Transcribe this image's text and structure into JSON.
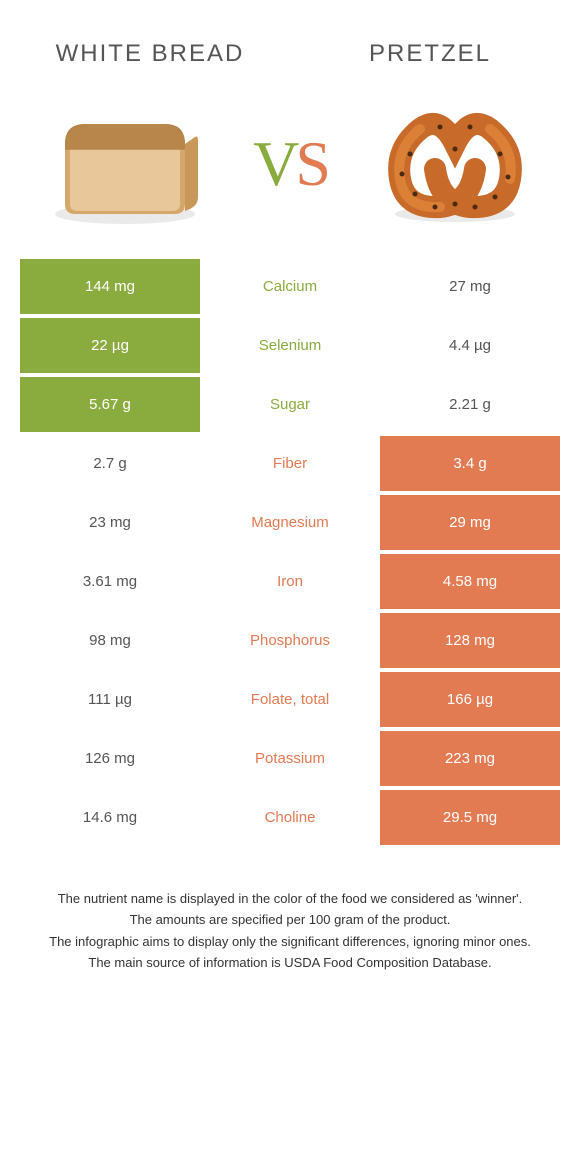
{
  "header": {
    "left_title": "White Bread",
    "right_title": "Pretzel",
    "vs_v": "V",
    "vs_s": "S"
  },
  "colors": {
    "green": "#8aab3e",
    "orange": "#e27a52",
    "bread_light": "#e8c89a",
    "bread_mid": "#d4a86a",
    "bread_dark": "#b8864a",
    "pretzel_main": "#c86a2a",
    "pretzel_light": "#e89040",
    "pretzel_dark": "#4a2a10"
  },
  "rows": [
    {
      "label": "Calcium",
      "left": "144 mg",
      "right": "27 mg",
      "winner": "left"
    },
    {
      "label": "Selenium",
      "left": "22 µg",
      "right": "4.4 µg",
      "winner": "left"
    },
    {
      "label": "Sugar",
      "left": "5.67 g",
      "right": "2.21 g",
      "winner": "left"
    },
    {
      "label": "Fiber",
      "left": "2.7 g",
      "right": "3.4 g",
      "winner": "right"
    },
    {
      "label": "Magnesium",
      "left": "23 mg",
      "right": "29 mg",
      "winner": "right"
    },
    {
      "label": "Iron",
      "left": "3.61 mg",
      "right": "4.58 mg",
      "winner": "right"
    },
    {
      "label": "Phosphorus",
      "left": "98 mg",
      "right": "128 mg",
      "winner": "right"
    },
    {
      "label": "Folate, total",
      "left": "111 µg",
      "right": "166 µg",
      "winner": "right"
    },
    {
      "label": "Potassium",
      "left": "126 mg",
      "right": "223 mg",
      "winner": "right"
    },
    {
      "label": "Choline",
      "left": "14.6 mg",
      "right": "29.5 mg",
      "winner": "right"
    }
  ],
  "footnotes": [
    "The nutrient name is displayed in the color of the food we considered as 'winner'.",
    "The amounts are specified per 100 gram of the product.",
    "The infographic aims to display only the significant differences, ignoring minor ones.",
    "The main source of information is USDA Food Composition Database."
  ]
}
